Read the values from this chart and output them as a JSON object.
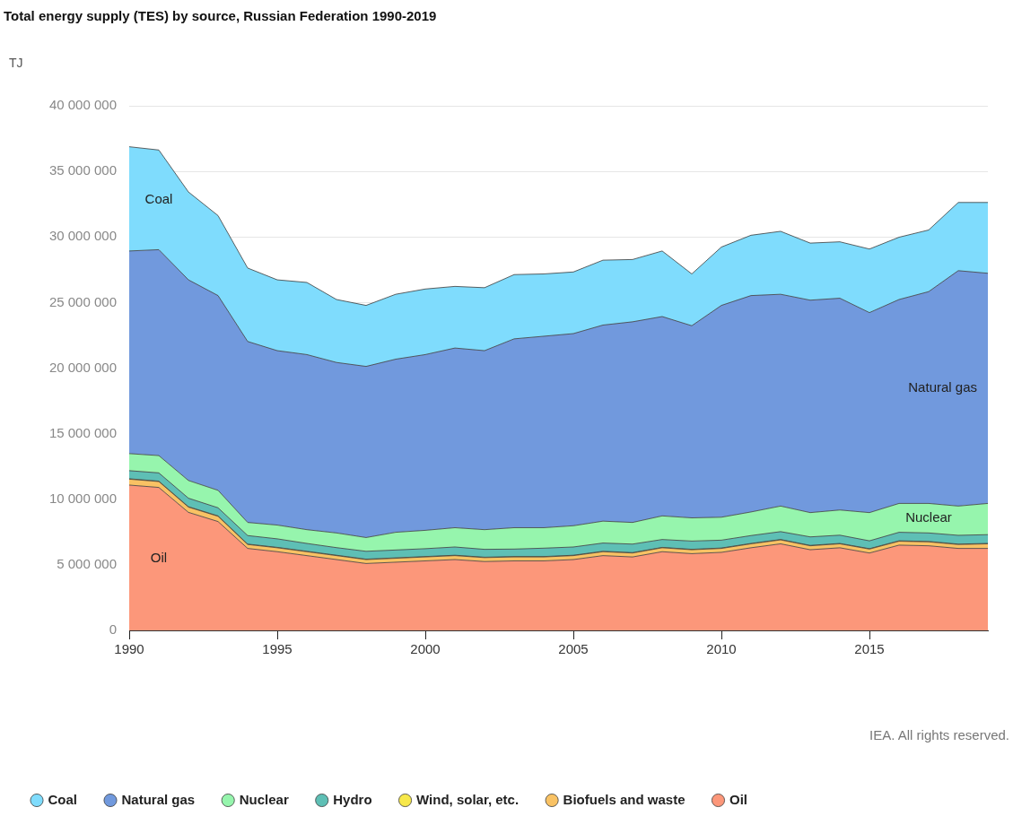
{
  "chart_data": {
    "type": "area",
    "title": "Total energy supply (TES) by source, Russian Federation 1990-2019",
    "ylabel": "TJ",
    "annotations": [
      "IEA. All rights reserved."
    ],
    "x": [
      1990,
      1991,
      1992,
      1993,
      1994,
      1995,
      1996,
      1997,
      1998,
      1999,
      2000,
      2001,
      2002,
      2003,
      2004,
      2005,
      2006,
      2007,
      2008,
      2009,
      2010,
      2011,
      2012,
      2013,
      2014,
      2015,
      2016,
      2017,
      2018,
      2019
    ],
    "stacked": true,
    "xlim": [
      1990,
      2019
    ],
    "xticks": [
      1990,
      1995,
      2000,
      2005,
      2010,
      2015
    ],
    "ylim": [
      0,
      40000000
    ],
    "yticks": [
      {
        "value": 0,
        "label": "0"
      },
      {
        "value": 5000000,
        "label": "5 000 000"
      },
      {
        "value": 10000000,
        "label": "10 000 000"
      },
      {
        "value": 15000000,
        "label": "15 000 000"
      },
      {
        "value": 20000000,
        "label": "20 000 000"
      },
      {
        "value": 25000000,
        "label": "25 000 000"
      },
      {
        "value": 30000000,
        "label": "30 000 000"
      },
      {
        "value": 35000000,
        "label": "35 000 000"
      },
      {
        "value": 40000000,
        "label": "40 000 000"
      }
    ],
    "grid": "y",
    "legend": "bottom",
    "marker": "none",
    "series": [
      {
        "name": "Oil",
        "color": "#fc977a",
        "values": [
          11080000,
          10900000,
          9000000,
          8300000,
          6250000,
          6000000,
          5700000,
          5400000,
          5100000,
          5200000,
          5300000,
          5400000,
          5250000,
          5300000,
          5300000,
          5400000,
          5700000,
          5600000,
          6000000,
          5850000,
          5950000,
          6300000,
          6600000,
          6150000,
          6300000,
          5900000,
          6500000,
          6450000,
          6250000,
          6250000
        ]
      },
      {
        "name": "Biofuels and waste",
        "color": "#f9c264",
        "values": [
          450000,
          450000,
          400000,
          400000,
          300000,
          300000,
          300000,
          300000,
          300000,
          300000,
          300000,
          300000,
          300000,
          300000,
          300000,
          300000,
          300000,
          300000,
          300000,
          300000,
          300000,
          300000,
          300000,
          300000,
          300000,
          300000,
          300000,
          300000,
          300000,
          350000
        ]
      },
      {
        "name": "Wind, solar, etc.",
        "color": "#f7e84a",
        "values": [
          30000,
          30000,
          30000,
          30000,
          30000,
          30000,
          30000,
          30000,
          30000,
          30000,
          30000,
          30000,
          30000,
          30000,
          30000,
          30000,
          30000,
          30000,
          30000,
          30000,
          30000,
          30000,
          30000,
          30000,
          30000,
          30000,
          30000,
          30000,
          30000,
          30000
        ]
      },
      {
        "name": "Hydro",
        "color": "#5ebfb5",
        "values": [
          620000,
          630000,
          650000,
          620000,
          650000,
          650000,
          600000,
          580000,
          600000,
          600000,
          600000,
          630000,
          600000,
          570000,
          640000,
          630000,
          630000,
          650000,
          600000,
          630000,
          600000,
          600000,
          600000,
          650000,
          630000,
          600000,
          650000,
          650000,
          670000,
          670000
        ]
      },
      {
        "name": "Nuclear",
        "color": "#96f5ad",
        "values": [
          1300000,
          1320000,
          1350000,
          1330000,
          1000000,
          1050000,
          1050000,
          1120000,
          1050000,
          1350000,
          1400000,
          1470000,
          1500000,
          1630000,
          1560000,
          1620000,
          1670000,
          1650000,
          1800000,
          1770000,
          1750000,
          1800000,
          1950000,
          1850000,
          1920000,
          2150000,
          2200000,
          2250000,
          2230000,
          2380000
        ]
      },
      {
        "name": "Natural gas",
        "color": "#7199dd",
        "values": [
          15450000,
          15700000,
          15300000,
          14850000,
          13800000,
          13300000,
          13350000,
          13000000,
          13050000,
          13200000,
          13400000,
          13700000,
          13650000,
          14400000,
          14600000,
          14650000,
          14950000,
          15300000,
          15200000,
          14650000,
          16150000,
          16500000,
          16150000,
          16200000,
          16150000,
          15250000,
          15550000,
          16150000,
          17950000,
          17550000
        ]
      },
      {
        "name": "Coal",
        "color": "#7fdcfd",
        "values": [
          7950000,
          7600000,
          6700000,
          6100000,
          5600000,
          5400000,
          5500000,
          4800000,
          4650000,
          4950000,
          5000000,
          4700000,
          4800000,
          4900000,
          4750000,
          4700000,
          4950000,
          4750000,
          5000000,
          3950000,
          4450000,
          4600000,
          4800000,
          4350000,
          4300000,
          4850000,
          4750000,
          4700000,
          5200000,
          5400000
        ]
      }
    ]
  }
}
